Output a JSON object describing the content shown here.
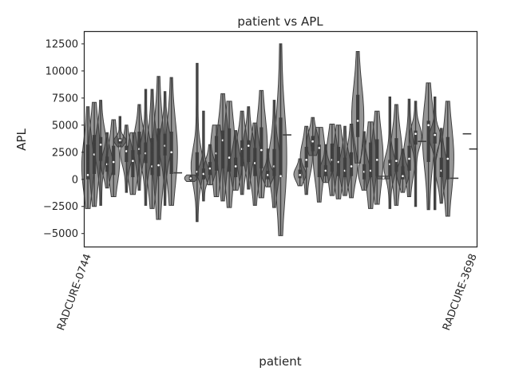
{
  "chart_data": {
    "type": "violin",
    "title": "patient vs APL",
    "xlabel": "patient",
    "ylabel": "APL",
    "ylim": [
      -6200,
      13600
    ],
    "yticks": [
      -5000,
      -2500,
      0,
      2500,
      5000,
      7500,
      10000,
      12500
    ],
    "yticklabels": [
      "−5000",
      "−2500",
      "0",
      "2500",
      "5000",
      "7500",
      "10000",
      "12500"
    ],
    "grid": false,
    "legend": "none",
    "colors": {
      "ink": "#3f3f3f",
      "frame": "#262626",
      "background": "#ffffff"
    },
    "xticklabels_legible": [
      "RADCURE-0744",
      "RADCURE-3698"
    ],
    "patients": [
      {
        "min": -2700,
        "q1": 0,
        "med": 400,
        "q3": 3200,
        "max": 6700
      },
      {
        "min": -2500,
        "q1": 500,
        "med": 2300,
        "q3": 4100,
        "max": 7100
      },
      {
        "min": -2400,
        "q1": 1700,
        "med": 3200,
        "q3": 3900,
        "max": 7300
      },
      {
        "min": -800,
        "q1": 700,
        "med": 1400,
        "q3": 2100,
        "max": 4300
      },
      {
        "min": -1600,
        "q1": 400,
        "med": 1600,
        "q3": 3100,
        "max": 5500
      },
      {
        "min": 3000,
        "q1": 3300,
        "med": 3600,
        "q3": 3800,
        "max": 5800
      },
      {
        "min": -1200,
        "q1": 1600,
        "med": 2600,
        "q3": 3100,
        "max": 5000
      },
      {
        "min": -1400,
        "q1": 200,
        "med": 1700,
        "q3": 2700,
        "max": 4300
      },
      {
        "min": -1000,
        "q1": 2300,
        "med": 2800,
        "q3": 4400,
        "max": 6900
      },
      {
        "min": -2400,
        "q1": 1500,
        "med": 2400,
        "q3": 3400,
        "max": 8300
      },
      {
        "min": -2700,
        "q1": 400,
        "med": 1200,
        "q3": 3800,
        "max": 8300
      },
      {
        "min": -3700,
        "q1": 300,
        "med": 1300,
        "q3": 4700,
        "max": 9500
      },
      {
        "min": -2400,
        "q1": 2200,
        "med": 3100,
        "q3": 4200,
        "max": 8100
      },
      {
        "min": -2400,
        "q1": 500,
        "med": 2500,
        "q3": 4400,
        "max": 9400
      },
      {
        "min": 550,
        "q1": 550,
        "med": 600,
        "q3": 600,
        "max": 650
      },
      null,
      {
        "min": -200,
        "q1": -100,
        "med": 100,
        "q3": 300,
        "max": 400
      },
      {
        "min": -3900,
        "q1": 300,
        "med": 700,
        "q3": 2500,
        "max": 10700
      },
      {
        "min": -2000,
        "q1": 0,
        "med": 500,
        "q3": 1000,
        "max": 6300
      },
      {
        "min": -500,
        "q1": 400,
        "med": 1000,
        "q3": 1600,
        "max": 3200
      },
      {
        "min": -1600,
        "q1": 800,
        "med": 2400,
        "q3": 4000,
        "max": 5000
      },
      {
        "min": -2000,
        "q1": 1000,
        "med": 3600,
        "q3": 4500,
        "max": 7900
      },
      {
        "min": -2600,
        "q1": 700,
        "med": 2000,
        "q3": 4700,
        "max": 7200
      },
      {
        "min": -1000,
        "q1": 200,
        "med": 1200,
        "q3": 2000,
        "max": 4500
      },
      {
        "min": -1400,
        "q1": 1200,
        "med": 2800,
        "q3": 3600,
        "max": 6300
      },
      {
        "min": -900,
        "q1": 1600,
        "med": 3100,
        "q3": 3600,
        "max": 6700
      },
      {
        "min": -2400,
        "q1": 300,
        "med": 1500,
        "q3": 2900,
        "max": 5200
      },
      {
        "min": -1700,
        "q1": 1000,
        "med": 2700,
        "q3": 4800,
        "max": 8200
      },
      {
        "min": -700,
        "q1": 0,
        "med": 400,
        "q3": 800,
        "max": 2800
      },
      {
        "min": -2600,
        "q1": 300,
        "med": 1200,
        "q3": 2800,
        "max": 7300
      },
      {
        "min": -5200,
        "q1": 200,
        "med": 300,
        "q3": 5700,
        "max": 12500
      },
      {
        "min": 4100,
        "q1": 4100,
        "med": 4100,
        "q3": 4100,
        "max": 4100
      },
      null,
      {
        "min": -600,
        "q1": 100,
        "med": 400,
        "q3": 900,
        "max": 1900
      },
      {
        "min": -1400,
        "q1": 1100,
        "med": 1800,
        "q3": 3000,
        "max": 4900
      },
      {
        "min": 2200,
        "q1": 2600,
        "med": 3500,
        "q3": 4000,
        "max": 5700
      },
      {
        "min": -2100,
        "q1": 200,
        "med": 2900,
        "q3": 3200,
        "max": 4800
      },
      {
        "min": -300,
        "q1": 300,
        "med": 800,
        "q3": 1300,
        "max": 3200
      },
      {
        "min": -1500,
        "q1": 700,
        "med": 1800,
        "q3": 3300,
        "max": 5100
      },
      {
        "min": -1800,
        "q1": 300,
        "med": 1600,
        "q3": 3000,
        "max": 5000
      },
      {
        "min": -1500,
        "q1": 200,
        "med": 800,
        "q3": 2000,
        "max": 4900
      },
      {
        "min": -1700,
        "q1": 300,
        "med": 1200,
        "q3": 2500,
        "max": 5100
      },
      {
        "min": 1500,
        "q1": 3900,
        "med": 5400,
        "q3": 7800,
        "max": 11800
      },
      {
        "min": -1000,
        "q1": 0,
        "med": 700,
        "q3": 1400,
        "max": 4400
      },
      {
        "min": -2700,
        "q1": 200,
        "med": 800,
        "q3": 3400,
        "max": 5300
      },
      {
        "min": -2300,
        "q1": 300,
        "med": 1800,
        "q3": 3700,
        "max": 6300
      },
      {
        "min": 50,
        "q1": 100,
        "med": 150,
        "q3": 200,
        "max": 300
      },
      {
        "min": -2700,
        "q1": 300,
        "med": 1400,
        "q3": 1800,
        "max": 7600
      },
      {
        "min": -2400,
        "q1": 700,
        "med": 1700,
        "q3": 3800,
        "max": 6900
      },
      {
        "min": -1200,
        "q1": 0,
        "med": 300,
        "q3": 1200,
        "max": 2800
      },
      {
        "min": -1600,
        "q1": 800,
        "med": 1900,
        "q3": 3100,
        "max": 7400
      },
      {
        "min": -2500,
        "q1": 3200,
        "med": 4200,
        "q3": 4500,
        "max": 7200
      },
      {
        "min": 3500,
        "q1": 3500,
        "med": 3500,
        "q3": 3500,
        "max": 3500
      },
      {
        "min": -2800,
        "q1": 1600,
        "med": 5000,
        "q3": 5400,
        "max": 8900
      },
      {
        "min": -2800,
        "q1": 3300,
        "med": 4100,
        "q3": 4300,
        "max": 7600
      },
      {
        "min": -2200,
        "q1": 200,
        "med": 800,
        "q3": 2000,
        "max": 4700
      },
      {
        "min": -3400,
        "q1": 0,
        "med": 1900,
        "q3": 3900,
        "max": 7200
      },
      {
        "min": 100,
        "q1": 100,
        "med": 100,
        "q3": 100,
        "max": 100
      },
      null,
      {
        "min": 4200,
        "q1": 4200,
        "med": 4200,
        "q3": 4200,
        "max": 4200
      },
      {
        "min": 2800,
        "q1": 2800,
        "med": 2800,
        "q3": 2800,
        "max": 2800
      }
    ]
  }
}
